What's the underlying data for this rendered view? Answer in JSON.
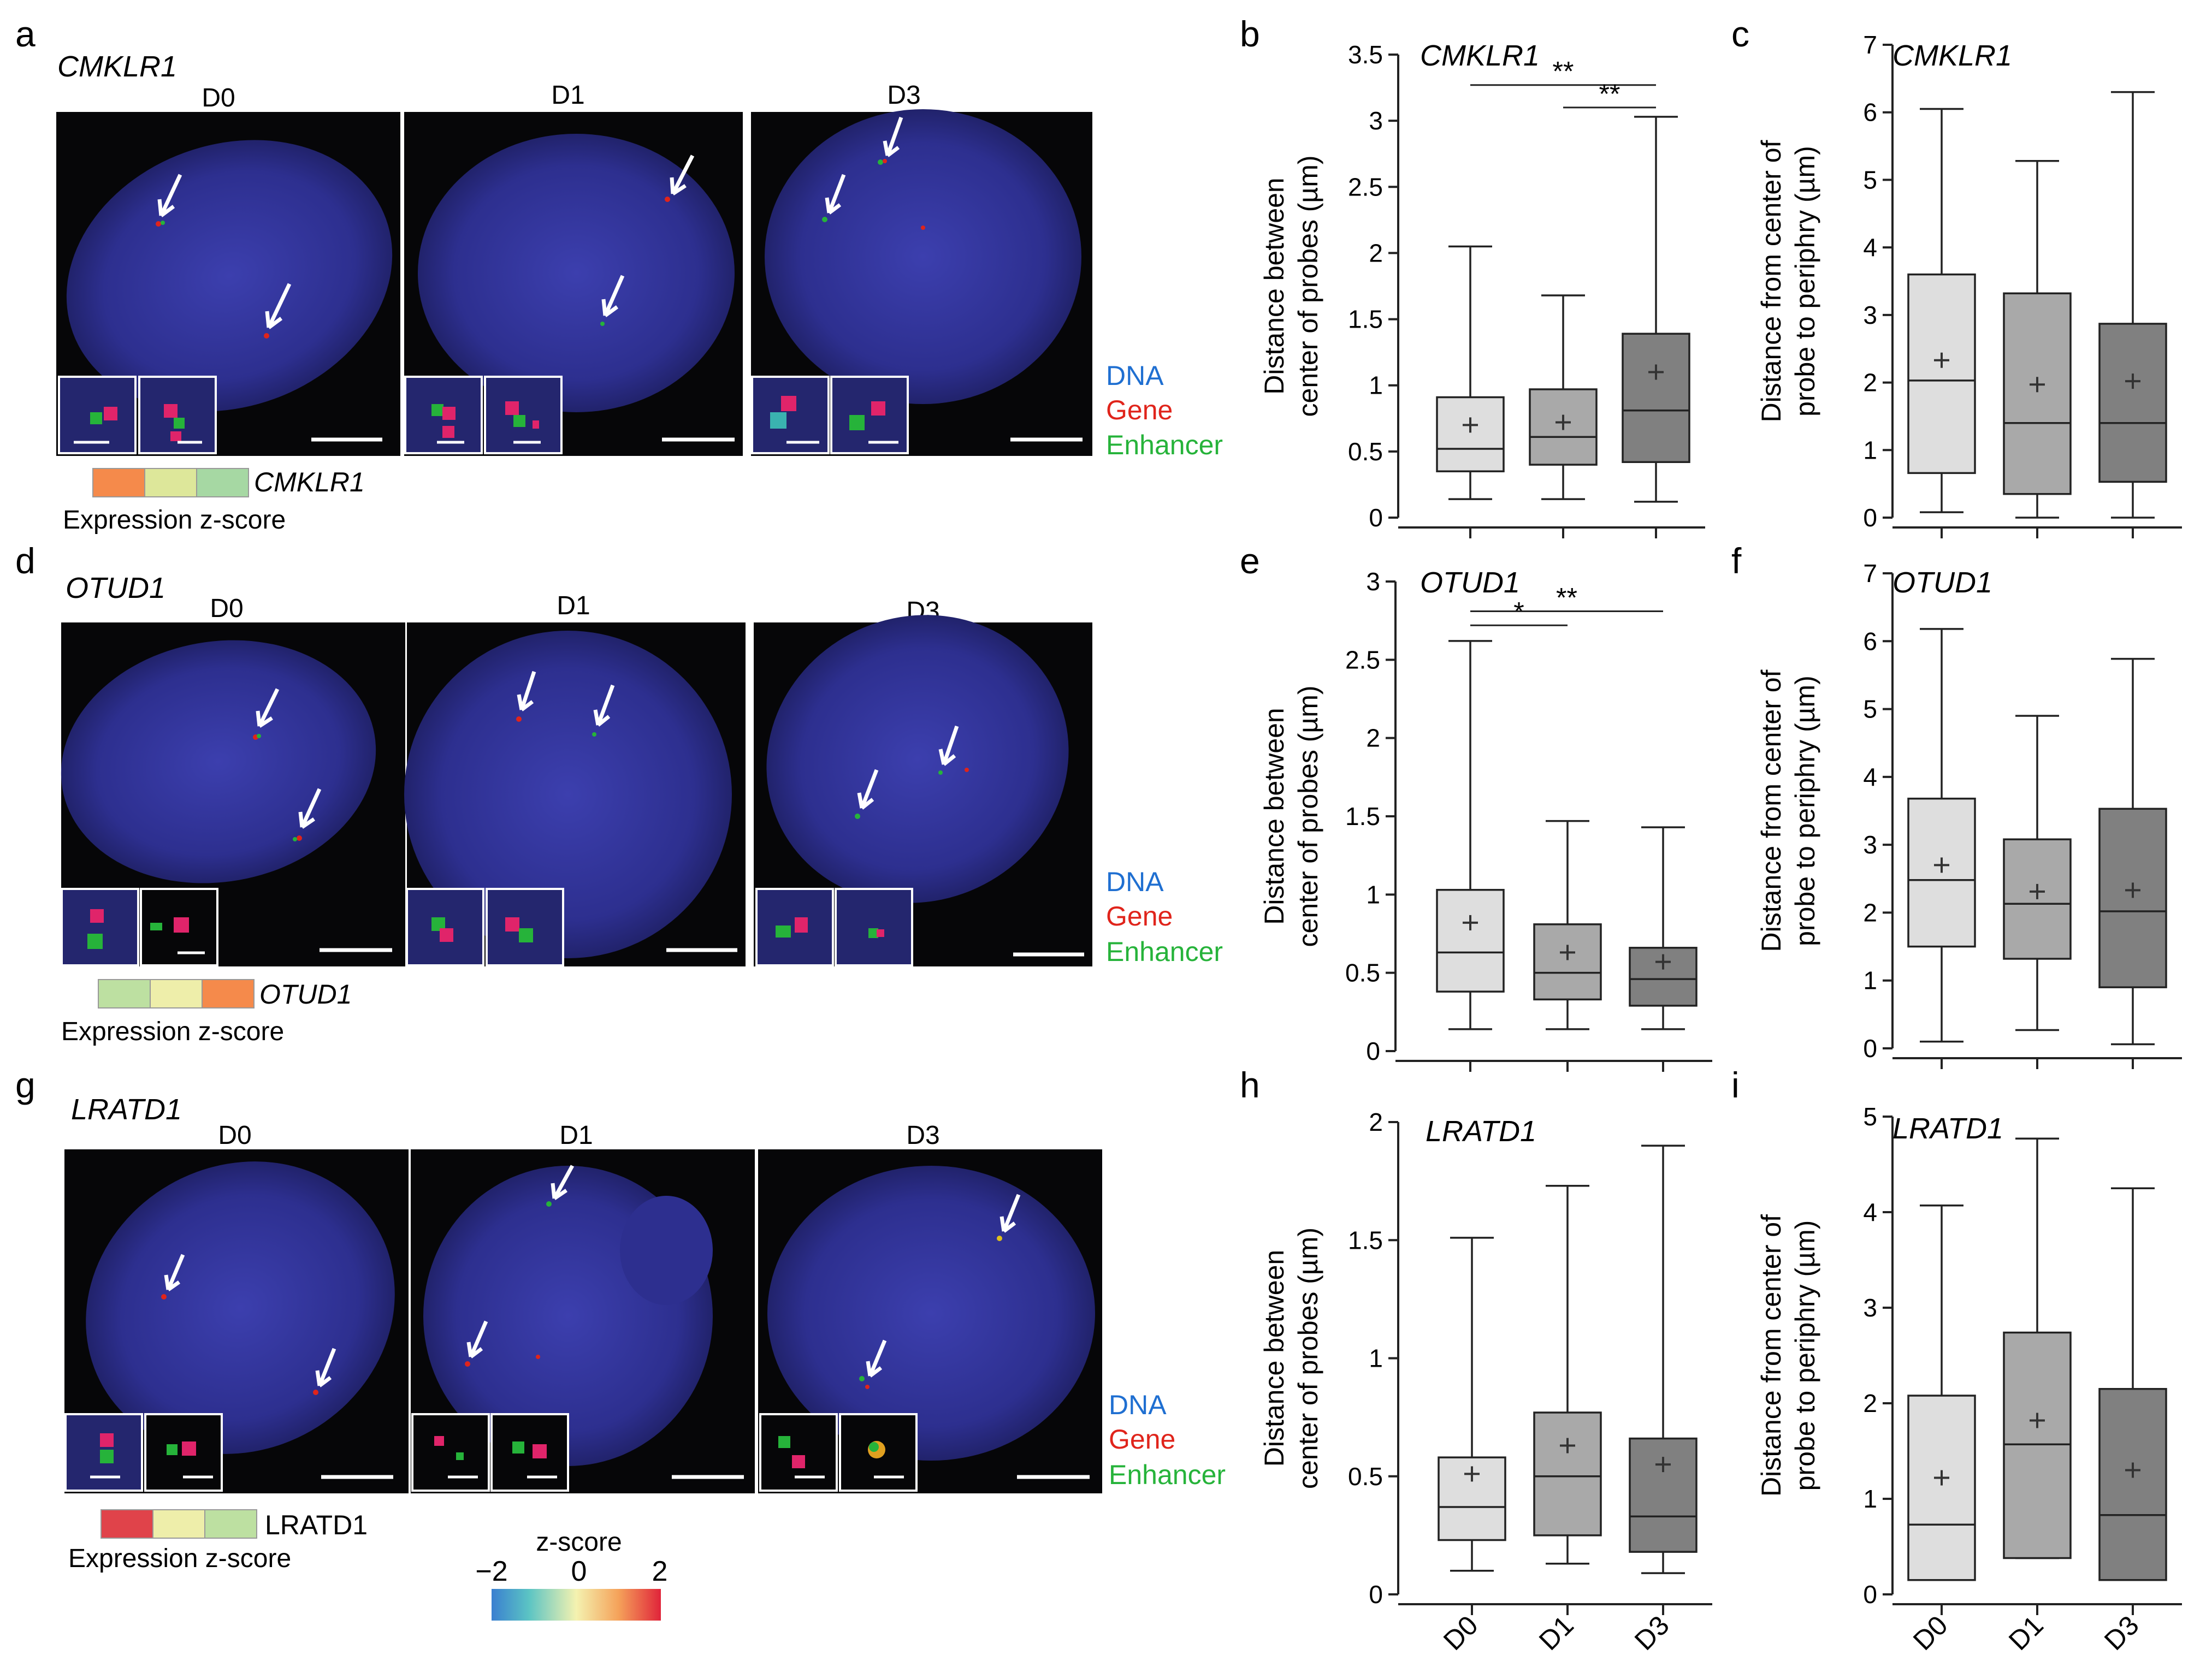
{
  "panel_letters": [
    "a",
    "b",
    "c",
    "d",
    "e",
    "f",
    "g",
    "h",
    "i"
  ],
  "days": [
    "D0",
    "D1",
    "D3"
  ],
  "legend": {
    "dna": "DNA",
    "gene": "Gene",
    "enhancer": "Enhancer"
  },
  "colors": {
    "dna": "#1f6fd1",
    "gene": "#e0241b",
    "enhancer": "#26b33a",
    "box_d0": "#dedede",
    "box_d1": "#a9a9a9",
    "box_d3": "#808080"
  },
  "image_rows": [
    {
      "letter": "a",
      "gene": "CMKLR1",
      "zscore_label": "CMKLR1",
      "zscore_italic": true,
      "zscore_colors": [
        "#f58a4b",
        "#dde79a",
        "#a6d8a3"
      ],
      "expression_label": "Expression z-score"
    },
    {
      "letter": "d",
      "gene": "OTUD1",
      "zscore_label": "OTUD1",
      "zscore_italic": true,
      "zscore_colors": [
        "#bde0a1",
        "#eeeeaa",
        "#f58a4b"
      ],
      "expression_label": "Expression z-score"
    },
    {
      "letter": "g",
      "gene": "LRATD1",
      "zscore_label": "LRATD1",
      "zscore_italic": false,
      "zscore_colors": [
        "#e0434a",
        "#eeeeaa",
        "#bde0a1"
      ],
      "expression_label": "Expression z-score"
    }
  ],
  "colorbar": {
    "title": "z-score",
    "ticks": [
      "−2",
      "0",
      "2"
    ]
  },
  "chart_data": [
    {
      "panel": "b",
      "type": "box",
      "title": "CMKLR1",
      "ylabel": "Distance between center of probes (µm)",
      "categories": [
        "D0",
        "D1",
        "D3"
      ],
      "ylim": [
        0,
        3.5
      ],
      "yticks": [
        0,
        0.5,
        1,
        1.5,
        2,
        2.5,
        3,
        3.5
      ],
      "boxes": [
        {
          "min": 0.14,
          "q1": 0.35,
          "median": 0.52,
          "q3": 0.91,
          "max": 2.05,
          "mean": 0.7
        },
        {
          "min": 0.14,
          "q1": 0.4,
          "median": 0.61,
          "q3": 0.97,
          "max": 1.68,
          "mean": 0.72
        },
        {
          "min": 0.12,
          "q1": 0.42,
          "median": 0.81,
          "q3": 1.39,
          "max": 3.03,
          "mean": 1.1
        }
      ],
      "significance": [
        {
          "from": 0,
          "to": 2,
          "label": "**",
          "y": 3.27
        },
        {
          "from": 1,
          "to": 2,
          "label": "**",
          "y": 3.1
        }
      ]
    },
    {
      "panel": "c",
      "type": "box",
      "title": "CMKLR1",
      "ylabel": "Distance from center of probe to periphry (µm)",
      "categories": [
        "D0",
        "D1",
        "D3"
      ],
      "ylim": [
        0,
        7
      ],
      "yticks": [
        0,
        1,
        2,
        3,
        4,
        5,
        6,
        7
      ],
      "boxes": [
        {
          "min": 0.08,
          "q1": 0.66,
          "median": 2.03,
          "q3": 3.6,
          "max": 6.05,
          "mean": 2.33
        },
        {
          "min": 0.0,
          "q1": 0.35,
          "median": 1.4,
          "q3": 3.32,
          "max": 5.28,
          "mean": 1.97
        },
        {
          "min": 0.0,
          "q1": 0.53,
          "median": 1.4,
          "q3": 2.87,
          "max": 6.3,
          "mean": 2.02
        }
      ],
      "significance": []
    },
    {
      "panel": "e",
      "type": "box",
      "title": "OTUD1",
      "ylabel": "Distance between center of probes (µm)",
      "categories": [
        "D0",
        "D1",
        "D3"
      ],
      "ylim": [
        0,
        3
      ],
      "yticks": [
        0,
        0.5,
        1,
        1.5,
        2,
        2.5,
        3
      ],
      "boxes": [
        {
          "min": 0.14,
          "q1": 0.38,
          "median": 0.63,
          "q3": 1.03,
          "max": 2.62,
          "mean": 0.82
        },
        {
          "min": 0.14,
          "q1": 0.33,
          "median": 0.5,
          "q3": 0.81,
          "max": 1.47,
          "mean": 0.63
        },
        {
          "min": 0.14,
          "q1": 0.29,
          "median": 0.46,
          "q3": 0.66,
          "max": 1.43,
          "mean": 0.57
        }
      ],
      "significance": [
        {
          "from": 0,
          "to": 1,
          "label": "*",
          "y": 2.72
        },
        {
          "from": 0,
          "to": 2,
          "label": "**",
          "y": 2.81
        }
      ]
    },
    {
      "panel": "f",
      "type": "box",
      "title": "OTUD1",
      "ylabel": "Distance from center of probe to periphry (µm)",
      "categories": [
        "D0",
        "D1",
        "D3"
      ],
      "ylim": [
        0,
        7
      ],
      "yticks": [
        0,
        1,
        2,
        3,
        4,
        5,
        6,
        7
      ],
      "boxes": [
        {
          "min": 0.1,
          "q1": 1.5,
          "median": 2.48,
          "q3": 3.68,
          "max": 6.18,
          "mean": 2.7
        },
        {
          "min": 0.27,
          "q1": 1.32,
          "median": 2.13,
          "q3": 3.08,
          "max": 4.9,
          "mean": 2.31
        },
        {
          "min": 0.06,
          "q1": 0.9,
          "median": 2.02,
          "q3": 3.53,
          "max": 5.74,
          "mean": 2.33
        }
      ],
      "significance": []
    },
    {
      "panel": "h",
      "type": "box",
      "title": "LRATD1",
      "ylabel": "Distance between center of probes (µm)",
      "categories": [
        "D0",
        "D1",
        "D3"
      ],
      "ylim": [
        0,
        2
      ],
      "yticks": [
        0,
        0.5,
        1,
        1.5,
        2
      ],
      "boxes": [
        {
          "min": 0.1,
          "q1": 0.23,
          "median": 0.37,
          "q3": 0.58,
          "max": 1.51,
          "mean": 0.51
        },
        {
          "min": 0.13,
          "q1": 0.25,
          "median": 0.5,
          "q3": 0.77,
          "max": 1.73,
          "mean": 0.63
        },
        {
          "min": 0.09,
          "q1": 0.18,
          "median": 0.33,
          "q3": 0.66,
          "max": 1.9,
          "mean": 0.55
        }
      ],
      "significance": []
    },
    {
      "panel": "i",
      "type": "box",
      "title": "LRATD1",
      "ylabel": "Distance from center of probe to periphry (µm)",
      "categories": [
        "D0",
        "D1",
        "D3"
      ],
      "ylim": [
        0,
        5
      ],
      "yticks": [
        0,
        1,
        2,
        3,
        4,
        5
      ],
      "boxes": [
        {
          "min": 0.15,
          "q1": 0.15,
          "median": 0.73,
          "q3": 2.08,
          "max": 4.07,
          "mean": 1.22
        },
        {
          "min": 0.38,
          "q1": 0.38,
          "median": 1.57,
          "q3": 2.74,
          "max": 4.77,
          "mean": 1.82
        },
        {
          "min": 0.15,
          "q1": 0.15,
          "median": 0.83,
          "q3": 2.15,
          "max": 4.25,
          "mean": 1.3
        }
      ],
      "significance": []
    }
  ]
}
